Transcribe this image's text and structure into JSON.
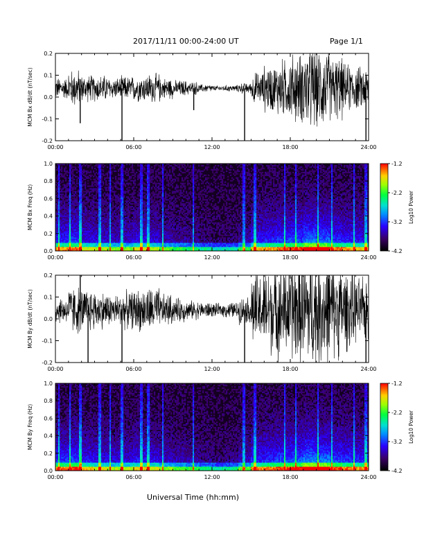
{
  "header": {
    "title": "2017/11/11  00:00-24:00 UT",
    "page": "Page 1/1"
  },
  "x_axis_label": "Universal Time (hh:mm)",
  "chart_data": [
    {
      "type": "line",
      "ylabel": "MCM Bx dB/dt (nT/sec)",
      "xlim": [
        0,
        24
      ],
      "ylim": [
        -0.2,
        0.2
      ],
      "x_ticks": [
        "00:00",
        "06:00",
        "12:00",
        "18:00",
        "24:00"
      ],
      "y_ticks": [
        "-0.2",
        "-0.1",
        "0.0",
        "0.1",
        "0.2"
      ],
      "series": [
        {
          "baseline": 0.04,
          "hourly_amplitude": [
            0.04,
            0.07,
            0.05,
            0.05,
            0.04,
            0.045,
            0.05,
            0.055,
            0.04,
            0.03,
            0.025,
            0.015,
            0.01,
            0.012,
            0.02,
            0.06,
            0.09,
            0.11,
            0.13,
            0.16,
            0.15,
            0.12,
            0.09,
            0.08
          ],
          "spikes": [
            [
              5.1,
              -0.22
            ],
            [
              14.5,
              -0.22
            ],
            [
              23.8,
              -0.22
            ],
            [
              1.9,
              -0.12
            ],
            [
              10.6,
              -0.06
            ]
          ]
        }
      ]
    },
    {
      "type": "heatmap",
      "ylabel": "MCM Bx Freq (Hz)",
      "colorbar_label": "Log10 Power",
      "xlim": [
        0,
        24
      ],
      "ylim": [
        0,
        1
      ],
      "color_range": [
        -4.2,
        -1.2
      ],
      "colorbar_ticks": [
        "-1.2",
        "-2.2",
        "-3.2",
        "-4.2"
      ],
      "x_ticks": [
        "00:00",
        "06:00",
        "12:00",
        "18:00",
        "24:00"
      ],
      "y_ticks": [
        "0.0",
        "0.2",
        "0.4",
        "0.6",
        "0.8",
        "1.0"
      ],
      "hourly_activity": [
        0.55,
        0.6,
        0.45,
        0.4,
        0.35,
        0.35,
        0.45,
        0.4,
        0.3,
        0.25,
        0.2,
        0.15,
        0.1,
        0.12,
        0.25,
        0.5,
        0.55,
        0.6,
        0.65,
        0.8,
        0.75,
        0.6,
        0.55,
        0.5
      ],
      "vertical_streaks": [
        0.3,
        1.1,
        1.9,
        3.4,
        4.2,
        5.1,
        6.6,
        7.1,
        8.2,
        10.6,
        14.4,
        14.5,
        15.3,
        17.6,
        18.4,
        20.1,
        21.2,
        22.9,
        23.8
      ]
    },
    {
      "type": "line",
      "ylabel": "MCM By dB/dt (nT/sec)",
      "xlim": [
        0,
        24
      ],
      "ylim": [
        -0.2,
        0.2
      ],
      "x_ticks": [
        "00:00",
        "06:00",
        "12:00",
        "18:00",
        "24:00"
      ],
      "y_ticks": [
        "-0.2",
        "-0.1",
        "0.0",
        "0.1",
        "0.2"
      ],
      "series": [
        {
          "baseline": 0.04,
          "hourly_amplitude": [
            0.05,
            0.09,
            0.08,
            0.07,
            0.06,
            0.07,
            0.08,
            0.085,
            0.06,
            0.045,
            0.035,
            0.03,
            0.025,
            0.03,
            0.05,
            0.14,
            0.17,
            0.19,
            0.2,
            0.22,
            0.21,
            0.18,
            0.15,
            0.12
          ],
          "spikes": [
            [
              5.1,
              -0.22
            ],
            [
              14.5,
              -0.22
            ],
            [
              23.8,
              -0.22
            ],
            [
              1.9,
              0.22
            ],
            [
              2.5,
              -0.22
            ]
          ]
        }
      ]
    },
    {
      "type": "heatmap",
      "ylabel": "MCM By Freq (Hz)",
      "colorbar_label": "Log10 Power",
      "xlim": [
        0,
        24
      ],
      "ylim": [
        0,
        1
      ],
      "color_range": [
        -4.2,
        -1.2
      ],
      "colorbar_ticks": [
        "-1.2",
        "-2.2",
        "-3.2",
        "-4.2"
      ],
      "x_ticks": [
        "00:00",
        "06:00",
        "12:00",
        "18:00",
        "24:00"
      ],
      "y_ticks": [
        "0.0",
        "0.2",
        "0.4",
        "0.6",
        "0.8",
        "1.0"
      ],
      "hourly_activity": [
        0.6,
        0.65,
        0.5,
        0.45,
        0.4,
        0.4,
        0.5,
        0.45,
        0.35,
        0.3,
        0.25,
        0.2,
        0.15,
        0.18,
        0.3,
        0.55,
        0.6,
        0.65,
        0.7,
        0.85,
        0.8,
        0.65,
        0.6,
        0.55
      ],
      "vertical_streaks": [
        0.3,
        1.1,
        1.9,
        3.4,
        4.2,
        5.1,
        6.6,
        7.1,
        8.2,
        10.6,
        14.4,
        14.5,
        15.3,
        17.6,
        18.4,
        20.1,
        21.2,
        22.9,
        23.8
      ]
    }
  ]
}
